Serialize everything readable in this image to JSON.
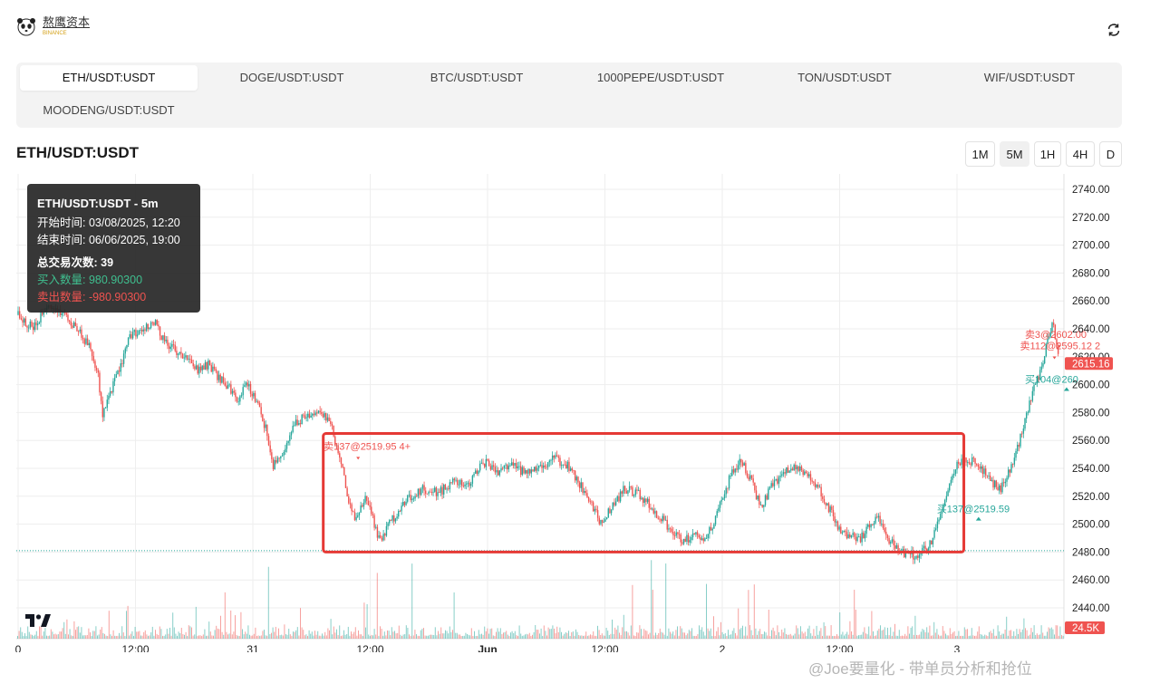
{
  "header": {
    "brand_name": "熬鹰资本",
    "brand_sub": "BINANCE"
  },
  "tabs": [
    {
      "label": "ETH/USDT:USDT",
      "active": true
    },
    {
      "label": "DOGE/USDT:USDT",
      "active": false
    },
    {
      "label": "BTC/USDT:USDT",
      "active": false
    },
    {
      "label": "1000PEPE/USDT:USDT",
      "active": false
    },
    {
      "label": "TON/USDT:USDT",
      "active": false
    },
    {
      "label": "WIF/USDT:USDT",
      "active": false
    },
    {
      "label": "MOODENG/USDT:USDT",
      "active": false
    }
  ],
  "chart_title": "ETH/USDT:USDT",
  "timeframes": [
    {
      "label": "1M",
      "active": false
    },
    {
      "label": "5M",
      "active": true
    },
    {
      "label": "1H",
      "active": false
    },
    {
      "label": "4H",
      "active": false
    },
    {
      "label": "D",
      "active": false
    }
  ],
  "tooltip": {
    "title": "ETH/USDT:USDT - 5m",
    "start": "开始时间: 03/08/2025, 12:20",
    "end": "结束时间: 06/06/2025, 19:00",
    "total": "总交易次数: 39",
    "buy": "买入数量: 980.90300",
    "sell": "卖出数量: -980.90300"
  },
  "watermark": "@Joe要量化 - 带单员分析和抢位",
  "chart_data": {
    "type": "candlestick",
    "y_ticks": [
      "2740.00",
      "2720.00",
      "2700.00",
      "2680.00",
      "2660.00",
      "2640.00",
      "2620.00",
      "2600.00",
      "2580.00",
      "2560.00",
      "2540.00",
      "2520.00",
      "2500.00",
      "2480.00",
      "2460.00",
      "2440.00"
    ],
    "ylim": [
      2425,
      2752
    ],
    "x_ticks": [
      {
        "label": "0",
        "t": 0
      },
      {
        "label": "12:00",
        "t": 12
      },
      {
        "label": "31",
        "t": 24
      },
      {
        "label": "12:00",
        "t": 36
      },
      {
        "label": "Jun",
        "t": 48,
        "bold": true
      },
      {
        "label": "12:00",
        "t": 60
      },
      {
        "label": "2",
        "t": 72
      },
      {
        "label": "12:00",
        "t": 84
      },
      {
        "label": "3",
        "t": 96
      }
    ],
    "x_range_hours": [
      0,
      106.5
    ],
    "price_path": [
      [
        0,
        2650
      ],
      [
        1.5,
        2640
      ],
      [
        3,
        2655
      ],
      [
        5,
        2648
      ],
      [
        6.5,
        2635
      ],
      [
        7.5,
        2625
      ],
      [
        8.2,
        2605
      ],
      [
        8.6,
        2578
      ],
      [
        9.2,
        2590
      ],
      [
        10.5,
        2615
      ],
      [
        11.5,
        2635
      ],
      [
        12.5,
        2640
      ],
      [
        14,
        2645
      ],
      [
        15,
        2630
      ],
      [
        16,
        2625
      ],
      [
        17.5,
        2620
      ],
      [
        18.5,
        2610
      ],
      [
        19.5,
        2615
      ],
      [
        20.5,
        2605
      ],
      [
        21.5,
        2598
      ],
      [
        22.5,
        2590
      ],
      [
        23.5,
        2600
      ],
      [
        24.5,
        2585
      ],
      [
        25.5,
        2565
      ],
      [
        26,
        2542
      ],
      [
        27,
        2550
      ],
      [
        28,
        2570
      ],
      [
        29,
        2575
      ],
      [
        30,
        2580
      ],
      [
        31,
        2582
      ],
      [
        32,
        2570
      ],
      [
        33,
        2545
      ],
      [
        33.8,
        2515
      ],
      [
        34.5,
        2505
      ],
      [
        35.5,
        2520
      ],
      [
        36.2,
        2505
      ],
      [
        37,
        2488
      ],
      [
        38,
        2500
      ],
      [
        39,
        2512
      ],
      [
        40,
        2520
      ],
      [
        41.5,
        2525
      ],
      [
        43,
        2522
      ],
      [
        44.5,
        2530
      ],
      [
        46,
        2528
      ],
      [
        47.5,
        2545
      ],
      [
        49,
        2538
      ],
      [
        50.5,
        2542
      ],
      [
        52,
        2536
      ],
      [
        53.5,
        2542
      ],
      [
        55,
        2547
      ],
      [
        56.5,
        2540
      ],
      [
        58,
        2522
      ],
      [
        59.5,
        2502
      ],
      [
        60.5,
        2510
      ],
      [
        62,
        2525
      ],
      [
        63.5,
        2522
      ],
      [
        65,
        2510
      ],
      [
        66.5,
        2498
      ],
      [
        68,
        2487
      ],
      [
        69.5,
        2495
      ],
      [
        70,
        2485
      ],
      [
        71,
        2500
      ],
      [
        72,
        2518
      ],
      [
        73,
        2538
      ],
      [
        74,
        2545
      ],
      [
        75,
        2530
      ],
      [
        76,
        2510
      ],
      [
        77,
        2528
      ],
      [
        78,
        2535
      ],
      [
        79,
        2542
      ],
      [
        80,
        2538
      ],
      [
        81,
        2532
      ],
      [
        82,
        2525
      ],
      [
        83,
        2510
      ],
      [
        84,
        2495
      ],
      [
        85,
        2492
      ],
      [
        86,
        2488
      ],
      [
        87,
        2500
      ],
      [
        88,
        2505
      ],
      [
        89,
        2490
      ],
      [
        90,
        2480
      ],
      [
        91,
        2478
      ],
      [
        92,
        2478
      ],
      [
        93,
        2483
      ],
      [
        93.5,
        2490
      ],
      [
        94.5,
        2512
      ],
      [
        95.5,
        2535
      ],
      [
        96.5,
        2548
      ],
      [
        97.5,
        2545
      ],
      [
        98.5,
        2540
      ],
      [
        99.5,
        2530
      ],
      [
        100.5,
        2525
      ],
      [
        101.5,
        2542
      ],
      [
        102.5,
        2562
      ],
      [
        103.5,
        2590
      ],
      [
        104.5,
        2610
      ],
      [
        105.2,
        2628
      ],
      [
        105.8,
        2645
      ],
      [
        106.5,
        2615
      ]
    ],
    "last_price": "2615.16",
    "last_volume": "24.5K",
    "dotted_line_value": 2481,
    "highlight_box": {
      "t_start": 31.2,
      "t_end": 96.7,
      "y_top": 2565,
      "y_bottom": 2480
    },
    "trade_markers": [
      {
        "side": "sell",
        "label": "卖137@2519.95 4+",
        "t": 31.8,
        "y": 2556
      },
      {
        "side": "buy",
        "label": "买137@2519.59",
        "t": 94.5,
        "y": 2511
      },
      {
        "side": "sell",
        "label": "卖3@2602.00",
        "t": 103.5,
        "y": 2636
      },
      {
        "side": "sell",
        "label": "卖112@2595.12 2",
        "t": 103,
        "y": 2628
      },
      {
        "side": "buy",
        "label": "买104@260",
        "t": 103.5,
        "y": 2604
      }
    ],
    "colors": {
      "up": "#26a69a",
      "down": "#ef5350",
      "box": "#e53935",
      "grid": "#eeeeee",
      "price_label_bg": "#ef5350"
    }
  }
}
